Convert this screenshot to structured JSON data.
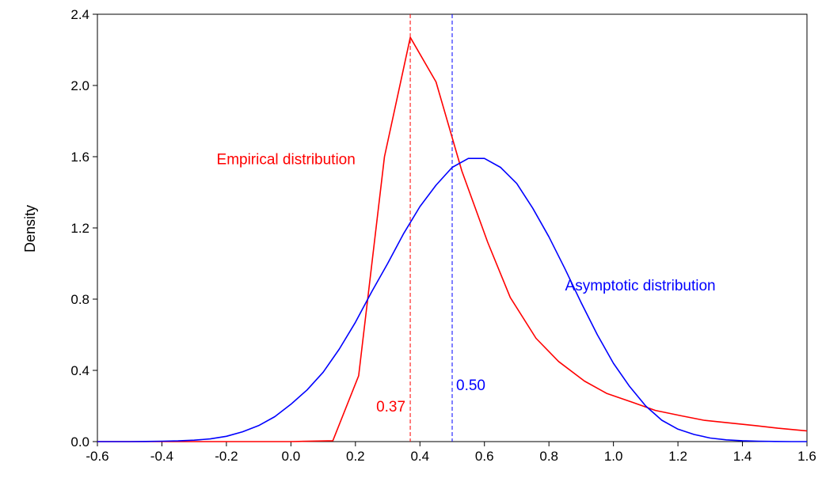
{
  "chart_data": {
    "type": "line",
    "title": "",
    "xlabel": "",
    "ylabel": "Density",
    "xlim": [
      -0.6,
      1.6
    ],
    "ylim": [
      0.0,
      2.4
    ],
    "x_ticks": [
      "-0.6",
      "-0.4",
      "-0.2",
      "0.0",
      "0.2",
      "0.4",
      "0.6",
      "0.8",
      "1.0",
      "1.2",
      "1.4",
      "1.6"
    ],
    "y_ticks": [
      "0.0",
      "0.4",
      "0.8",
      "1.2",
      "1.6",
      "2.0",
      "2.4"
    ],
    "grid": false,
    "series": [
      {
        "color": "#ff0000",
        "x": [
          -0.6,
          0.0,
          0.13,
          0.21,
          0.29,
          0.37,
          0.45,
          0.53,
          0.61,
          0.68,
          0.76,
          0.83,
          0.91,
          0.98,
          1.06,
          1.13,
          1.21,
          1.28,
          1.36,
          1.44,
          1.51,
          1.6
        ],
        "y": [
          0.0,
          0.0,
          0.005,
          0.37,
          1.6,
          2.27,
          2.02,
          1.52,
          1.12,
          0.81,
          0.58,
          0.45,
          0.34,
          0.27,
          0.22,
          0.175,
          0.145,
          0.12,
          0.105,
          0.09,
          0.075,
          0.06
        ]
      },
      {
        "color": "#0000ff",
        "x": [
          -0.6,
          -0.55,
          -0.5,
          -0.45,
          -0.4,
          -0.35,
          -0.3,
          -0.25,
          -0.2,
          -0.15,
          -0.1,
          -0.05,
          0.0,
          0.05,
          0.1,
          0.15,
          0.2,
          0.25,
          0.3,
          0.35,
          0.4,
          0.45,
          0.5,
          0.55,
          0.6,
          0.65,
          0.7,
          0.75,
          0.8,
          0.85,
          0.9,
          0.95,
          1.0,
          1.05,
          1.1,
          1.15,
          1.2,
          1.25,
          1.3,
          1.35,
          1.4,
          1.45,
          1.5,
          1.55,
          1.6
        ],
        "y": [
          0.0,
          0.0,
          0.0,
          0.001,
          0.002,
          0.004,
          0.008,
          0.015,
          0.03,
          0.055,
          0.09,
          0.14,
          0.21,
          0.29,
          0.39,
          0.52,
          0.67,
          0.84,
          1.0,
          1.17,
          1.32,
          1.44,
          1.54,
          1.59,
          1.59,
          1.54,
          1.45,
          1.31,
          1.15,
          0.97,
          0.78,
          0.6,
          0.44,
          0.31,
          0.2,
          0.12,
          0.07,
          0.04,
          0.02,
          0.01,
          0.005,
          0.002,
          0.001,
          0.0,
          0.0
        ]
      }
    ],
    "reference_lines": [
      {
        "x": 0.37,
        "color": "#ff0000",
        "style": "dashed",
        "label": "0.37"
      },
      {
        "x": 0.5,
        "color": "#0000ff",
        "style": "dashed",
        "label": "0.50"
      }
    ],
    "annotations": [
      {
        "text": "Empirical distribution",
        "x": 0.2,
        "y": 1.59,
        "color": "#ff0000",
        "anchor": "end"
      },
      {
        "text": "Asymptotic distribution",
        "x": 0.85,
        "y": 0.88,
        "color": "#0000ff",
        "anchor": "start"
      }
    ]
  }
}
